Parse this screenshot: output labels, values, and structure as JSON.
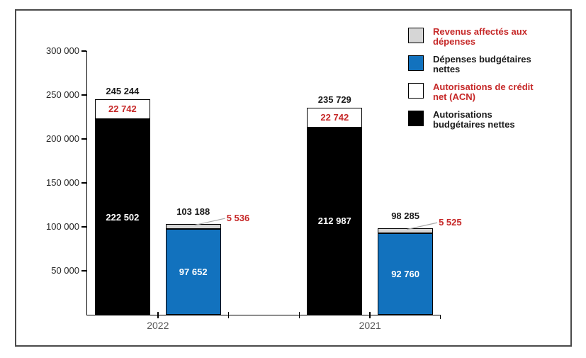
{
  "chart_data": {
    "type": "stacked-bar",
    "title": "",
    "ylim": [
      0,
      300000
    ],
    "grid": false,
    "legend_position": "top-right",
    "yticks": [
      {
        "value": 50000,
        "label": "50 000"
      },
      {
        "value": 100000,
        "label": "100 000"
      },
      {
        "value": 150000,
        "label": "150 000"
      },
      {
        "value": 200000,
        "label": "200 000"
      },
      {
        "value": 250000,
        "label": "250 000"
      },
      {
        "value": 300000,
        "label": "300 000"
      }
    ],
    "groups": [
      "2022",
      "2021"
    ],
    "legend": [
      {
        "label": "Revenus affectés aux\ndépenses",
        "swatch_color": "#d6d6d6",
        "text_color": "#c62828"
      },
      {
        "label": "Dépenses budgétaires\nnettes",
        "swatch_color": "#1272be",
        "text_color": "#1a1a1a"
      },
      {
        "label": "Autorisations de crédit\nnet (ACN)",
        "swatch_color": "#ffffff",
        "text_color": "#c62828"
      },
      {
        "label": "Autorisations\nbudgétaires nettes",
        "swatch_color": "#000000",
        "text_color": "#1a1a1a"
      }
    ],
    "bars": [
      {
        "group": "2022",
        "total": 245244,
        "total_label": "245 244",
        "segments": [
          {
            "series": "Autorisations budgétaires nettes",
            "value": 222502,
            "label": "222 502",
            "color": "#000000",
            "label_color": "#ffffff",
            "label_pos": "inside"
          },
          {
            "series": "Autorisations de crédit net (ACN)",
            "value": 22742,
            "label": "22 742",
            "color": "#ffffff",
            "label_color": "#c62828",
            "label_pos": "inside"
          }
        ]
      },
      {
        "group": "2022",
        "total": 103188,
        "total_label": "103 188",
        "segments": [
          {
            "series": "Dépenses budgétaires nettes",
            "value": 97652,
            "label": "97 652",
            "color": "#1272be",
            "label_color": "#ffffff",
            "label_pos": "inside"
          },
          {
            "series": "Revenus affectés aux dépenses",
            "value": 5536,
            "label": "5 536",
            "color": "#d6d6d6",
            "label_color": "#c62828",
            "label_pos": "callout"
          }
        ]
      },
      {
        "group": "2021",
        "total": 235729,
        "total_label": "235 729",
        "segments": [
          {
            "series": "Autorisations budgétaires nettes",
            "value": 212987,
            "label": "212 987",
            "color": "#000000",
            "label_color": "#ffffff",
            "label_pos": "inside"
          },
          {
            "series": "Autorisations de crédit net (ACN)",
            "value": 22742,
            "label": "22 742",
            "color": "#ffffff",
            "label_color": "#c62828",
            "label_pos": "inside"
          }
        ]
      },
      {
        "group": "2021",
        "total": 98285,
        "total_label": "98 285",
        "segments": [
          {
            "series": "Dépenses budgétaires nettes",
            "value": 92760,
            "label": "92 760",
            "color": "#1272be",
            "label_color": "#ffffff",
            "label_pos": "inside"
          },
          {
            "series": "Revenus affectés aux dépenses",
            "value": 5525,
            "label": "5 525",
            "color": "#d6d6d6",
            "label_color": "#c62828",
            "label_pos": "callout"
          }
        ]
      }
    ],
    "colors": {
      "axis": "#000000",
      "tick_label": "#262626",
      "group_label": "#595959",
      "leader_line": "#a8a8a8",
      "frame_border": "#4a4a4a"
    }
  }
}
